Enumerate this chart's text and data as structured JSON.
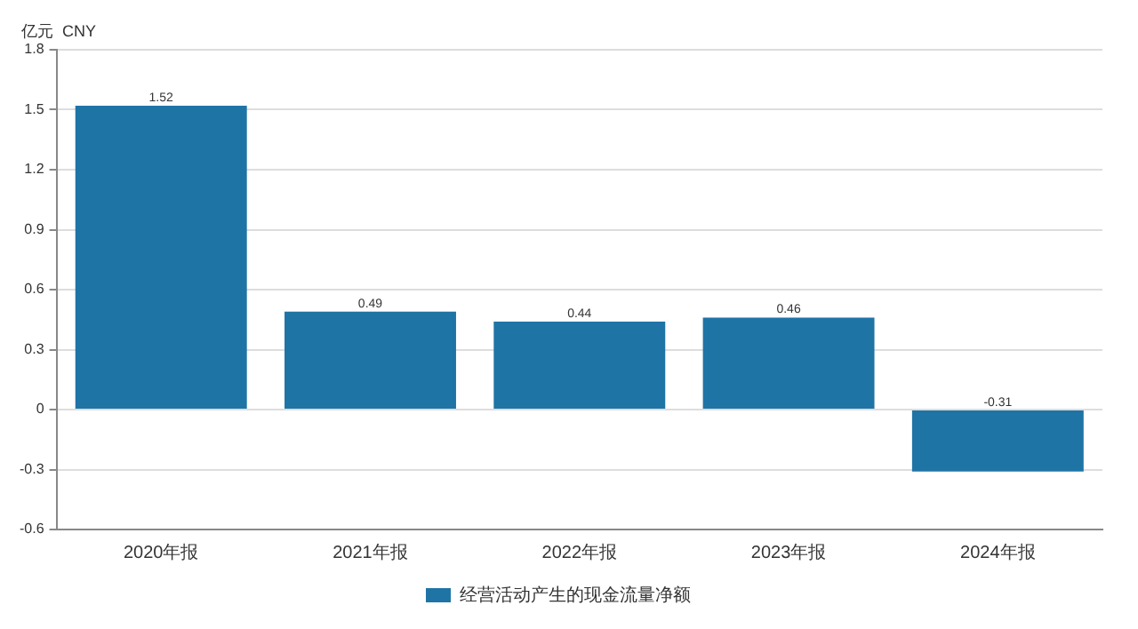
{
  "chart_data": {
    "type": "bar",
    "ylabel": "亿元  CNY",
    "categories": [
      "2020年报",
      "2021年报",
      "2022年报",
      "2023年报",
      "2024年报"
    ],
    "series": [
      {
        "name": "经营活动产生的现金流量净额",
        "color": "#1f74a6",
        "values": [
          1.52,
          0.49,
          0.44,
          0.46,
          -0.31
        ]
      }
    ],
    "ylim": [
      -0.6,
      1.8
    ],
    "yticks": [
      -0.6,
      -0.3,
      0,
      0.3,
      0.6,
      0.9,
      1.2,
      1.5,
      1.8
    ],
    "grid": "y",
    "legend": "bottom",
    "data_labels": true
  }
}
